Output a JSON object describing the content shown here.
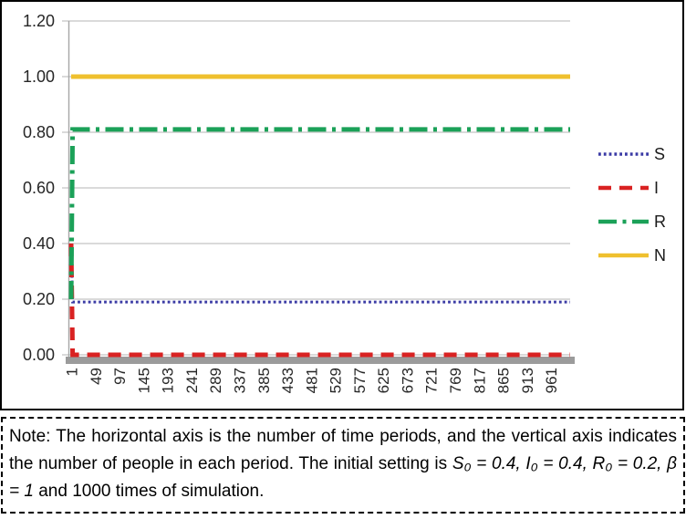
{
  "chart_data": {
    "type": "line",
    "title": "",
    "xlabel": "",
    "ylabel": "",
    "x_range": [
      1,
      1000
    ],
    "ylim": [
      0,
      1.2
    ],
    "grid": true,
    "legend_position": "right",
    "ytick_labels": [
      "1.20",
      "1.00",
      "0.80",
      "0.60",
      "0.40",
      "0.20",
      "0.00"
    ],
    "xtick_labels": [
      "1",
      "49",
      "97",
      "145",
      "193",
      "241",
      "289",
      "337",
      "385",
      "433",
      "481",
      "529",
      "577",
      "625",
      "673",
      "721",
      "769",
      "817",
      "865",
      "913",
      "961"
    ],
    "series": [
      {
        "name": "S",
        "color": "#3B3BA5",
        "dash": "dotted",
        "width": 3,
        "points": [
          [
            1,
            0.4
          ],
          [
            4,
            0.19
          ],
          [
            1000,
            0.19
          ]
        ]
      },
      {
        "name": "I",
        "color": "#D92222",
        "dash": "dashed",
        "width": 5,
        "points": [
          [
            1,
            0.4
          ],
          [
            4,
            0.0
          ],
          [
            1000,
            0.0
          ]
        ]
      },
      {
        "name": "R",
        "color": "#1BA158",
        "dash": "dashdot",
        "width": 5,
        "points": [
          [
            1,
            0.2
          ],
          [
            4,
            0.81
          ],
          [
            1000,
            0.81
          ]
        ]
      },
      {
        "name": "N",
        "color": "#EFC02E",
        "dash": "solid",
        "width": 5,
        "points": [
          [
            1,
            1.0
          ],
          [
            1000,
            1.0
          ]
        ]
      }
    ],
    "colors": {
      "grid": "#C3C3C3",
      "axis": "#A6A6A6",
      "baseline_bar": "#9B9B9B",
      "tick_text": "#262626"
    }
  },
  "note": {
    "before": "Note: The horizontal axis is the number of time periods, and the vertical axis indicates the number of people in each period. The initial setting is ",
    "italic": "S₀ = 0.4, I₀ = 0.4, R₀ = 0.2, β = 1",
    "after": " and 1000 times of simulation."
  }
}
